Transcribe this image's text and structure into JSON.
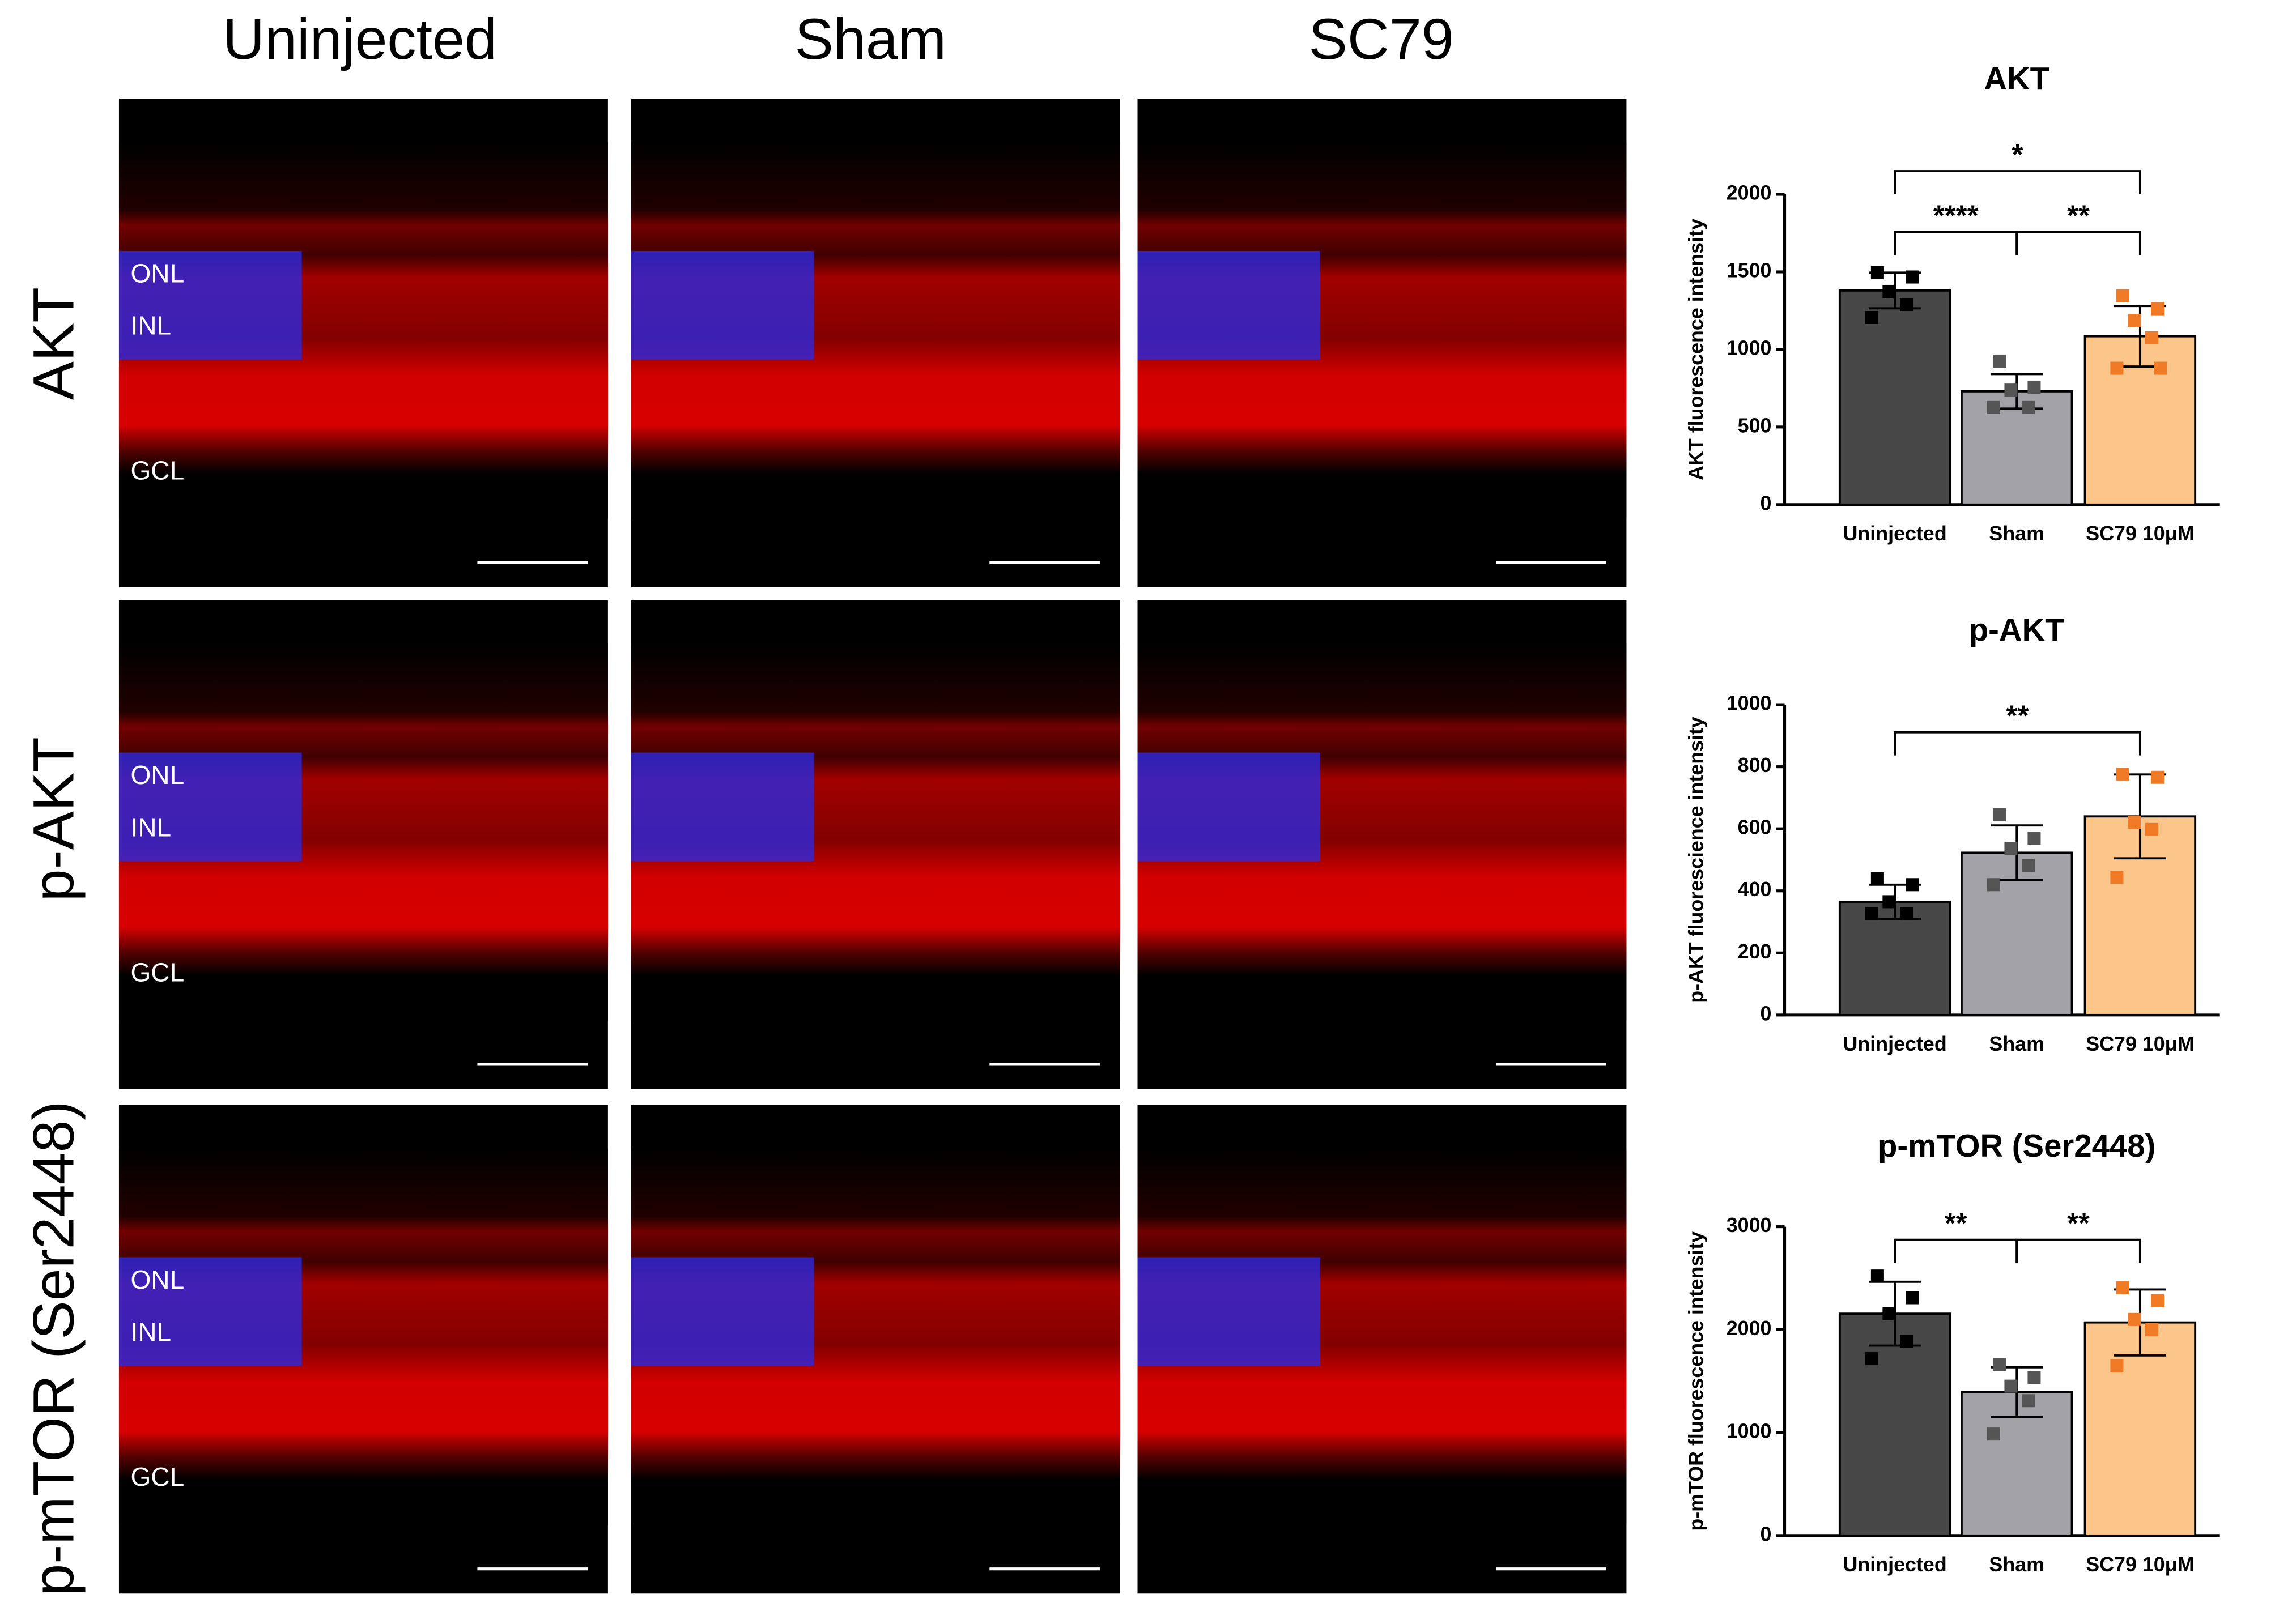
{
  "panels": {
    "columns": [
      "Uninjected",
      "Sham",
      "SC79"
    ],
    "rows": [
      "AKT",
      "p-AKT",
      "p-mTOR (Ser2448)"
    ],
    "layer_labels": [
      [
        "ONL",
        "INL",
        "GCL"
      ],
      [
        "ONL",
        "INL",
        "GCL"
      ],
      [
        "ONL",
        "INL",
        "GCL"
      ]
    ]
  },
  "chart_data": [
    {
      "type": "bar",
      "title": "AKT",
      "y_label": "AKT fluorescence intensity",
      "categories": [
        "Uninjected",
        "Sham",
        "SC79 10μM"
      ],
      "values": [
        1380,
        730,
        1085
      ],
      "errors": [
        115,
        111,
        195
      ],
      "points": [
        [
          1495,
          1467,
          1374,
          1290,
          1206
        ],
        [
          925,
          757,
          738,
          626,
          626
        ],
        [
          1346,
          1262,
          1187,
          1075,
          879,
          879
        ]
      ],
      "colors": [
        "#474747",
        "#a3a3a7",
        "#fcc58a"
      ],
      "point_colors": [
        "#000000",
        "#555555",
        "#f07a26"
      ],
      "ylim": [
        0,
        2000
      ],
      "yticks": [
        0,
        500,
        1000,
        1500,
        2000
      ],
      "comparisons": [
        {
          "label": "*",
          "pair": [
            0,
            2
          ]
        },
        {
          "label": "****",
          "pair": [
            0,
            1
          ]
        },
        {
          "label": "**",
          "pair": [
            1,
            2
          ]
        }
      ]
    },
    {
      "type": "bar",
      "title": "p-AKT",
      "y_label": "p-AKT fluorescience intensity",
      "categories": [
        "Uninjected",
        "Sham",
        "SC79 10μM"
      ],
      "values": [
        365,
        523,
        640
      ],
      "errors": [
        55,
        88,
        135
      ],
      "points": [
        [
          439,
          420,
          365,
          327,
          327
        ],
        [
          645,
          570,
          537,
          481,
          420
        ],
        [
          776,
          766,
          621,
          598,
          444
        ]
      ],
      "colors": [
        "#474747",
        "#a3a3a7",
        "#fcc58a"
      ],
      "point_colors": [
        "#000000",
        "#555555",
        "#f07a26"
      ],
      "ylim": [
        0,
        1000
      ],
      "yticks": [
        0,
        200,
        400,
        600,
        800,
        1000
      ],
      "comparisons": [
        {
          "label": "**",
          "pair": [
            0,
            2
          ]
        }
      ]
    },
    {
      "type": "bar",
      "title": "p-mTOR (Ser2448)",
      "y_label": "p-mTOR fluorescence intensity",
      "categories": [
        "Uninjected",
        "Sham",
        "SC79 10μM"
      ],
      "values": [
        2155,
        1394,
        2070
      ],
      "errors": [
        310,
        240,
        320
      ],
      "points": [
        [
          2521,
          2310,
          2155,
          1887,
          1718
        ],
        [
          1662,
          1535,
          1451,
          1310,
          986
        ],
        [
          2408,
          2282,
          2099,
          2000,
          1648
        ]
      ],
      "colors": [
        "#474747",
        "#a3a3a7",
        "#fcc58a"
      ],
      "point_colors": [
        "#000000",
        "#555555",
        "#f07a26"
      ],
      "ylim": [
        0,
        3000
      ],
      "yticks": [
        0,
        1000,
        2000,
        3000
      ],
      "comparisons": [
        {
          "label": "**",
          "pair": [
            0,
            1
          ]
        },
        {
          "label": "**",
          "pair": [
            1,
            2
          ]
        }
      ]
    }
  ]
}
